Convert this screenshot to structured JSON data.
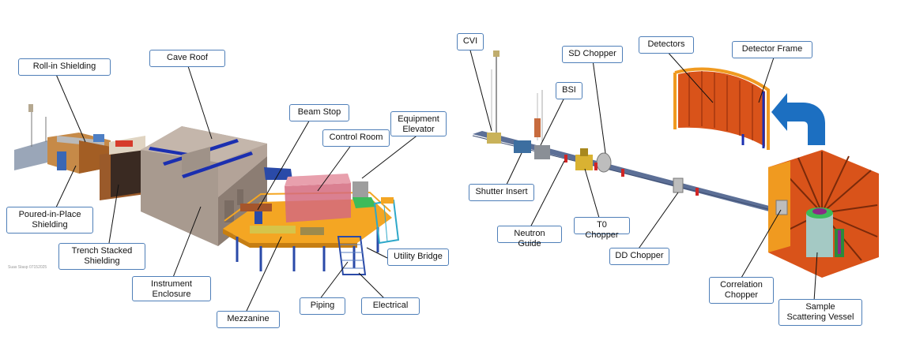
{
  "colors": {
    "label_border": "#4f7fb8",
    "enclosure": "#b3a398",
    "enclosure_dark": "#8c7d73",
    "roof_stripe": "#1b2fb0",
    "mezzanine": "#f4a623",
    "steel_blue": "#2a4aa8",
    "control_room": "#d46a7e",
    "detector_orange": "#d9531a",
    "frame_orange": "#f09a20",
    "arrow_blue": "#1c6fc1",
    "vessel_green": "#3dbb5a"
  },
  "left_diagram": {
    "watermark": "Suas Stasp 07152025",
    "labels": {
      "roll_in_shielding": "Roll-in Shielding",
      "cave_roof": "Cave Roof",
      "beam_stop": "Beam Stop",
      "equipment_elevator": "Equipment\nElevator",
      "control_room": "Control Room",
      "poured_in_place": "Poured-in-Place\nShielding",
      "trench_stacked": "Trench Stacked\nShielding",
      "instrument_enclosure": "Instrument\nEnclosure",
      "utility_bridge": "Utility Bridge",
      "mezzanine": "Mezzanine",
      "piping": "Piping",
      "electrical": "Electrical"
    }
  },
  "right_diagram": {
    "labels": {
      "cvi": "CVI",
      "sd_chopper": "SD Chopper",
      "detectors": "Detectors",
      "detector_frame": "Detector Frame",
      "bsi": "BSI",
      "shutter_insert": "Shutter Insert",
      "neutron_guide": "Neutron Guide",
      "t0_chopper": "T0 Chopper",
      "dd_chopper": "DD Chopper",
      "correlation_chopper": "Correlation\nChopper",
      "sample_vessel": "Sample\nScattering Vessel"
    }
  }
}
